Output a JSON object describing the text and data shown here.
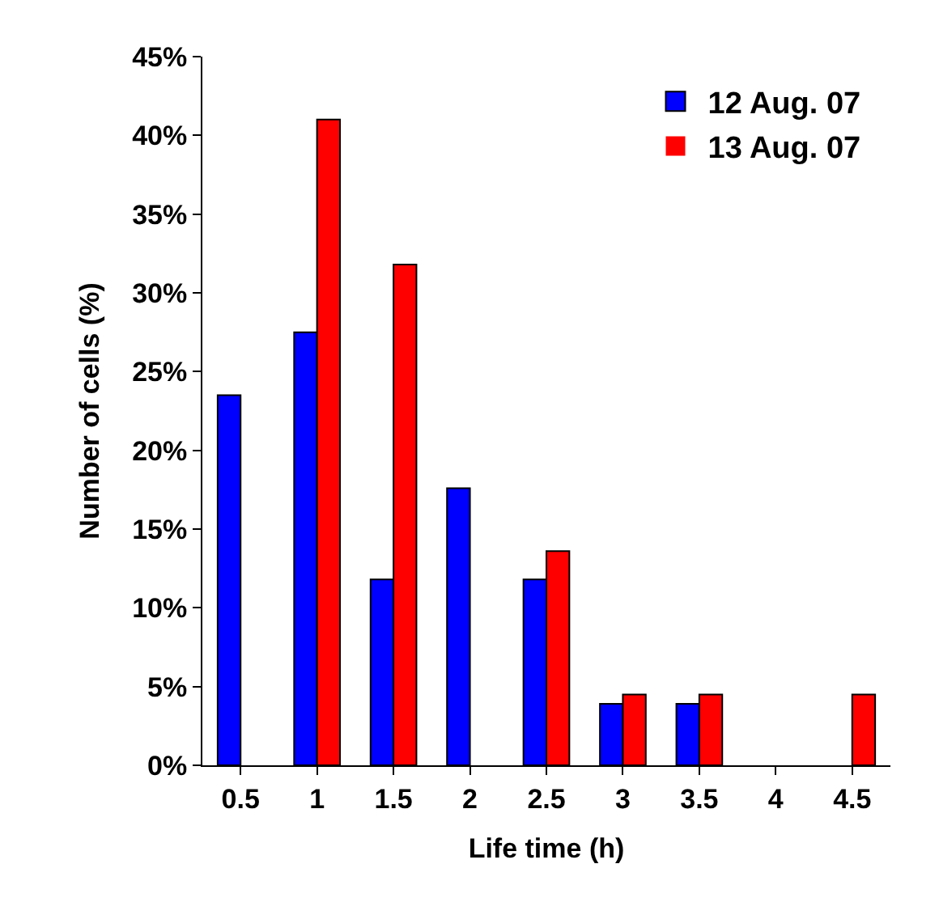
{
  "chart_data": {
    "type": "bar",
    "xlabel": "Life time (h)",
    "ylabel": "Number of cells (%)",
    "categories": [
      "0.5",
      "1",
      "1.5",
      "2",
      "2.5",
      "3",
      "3.5",
      "4",
      "4.5"
    ],
    "series": [
      {
        "name": "12 Aug. 07",
        "color": "#0000ff",
        "values": [
          23.5,
          27.5,
          11.8,
          17.6,
          11.8,
          3.9,
          3.9,
          0,
          0
        ]
      },
      {
        "name": "13 Aug. 07",
        "color": "#ff0000",
        "values": [
          0,
          41,
          31.8,
          0,
          13.6,
          4.5,
          4.5,
          0,
          4.5
        ]
      }
    ],
    "ylim": [
      0,
      45
    ],
    "yticks": [
      {
        "value": 0,
        "label": "0%"
      },
      {
        "value": 5,
        "label": "5%"
      },
      {
        "value": 10,
        "label": "10%"
      },
      {
        "value": 15,
        "label": "15%"
      },
      {
        "value": 20,
        "label": "20%"
      },
      {
        "value": 25,
        "label": "25%"
      },
      {
        "value": 30,
        "label": "30%"
      },
      {
        "value": 35,
        "label": "35%"
      },
      {
        "value": 40,
        "label": "40%"
      },
      {
        "value": 45,
        "label": "45%"
      }
    ],
    "grid": false,
    "legend": "top right"
  }
}
